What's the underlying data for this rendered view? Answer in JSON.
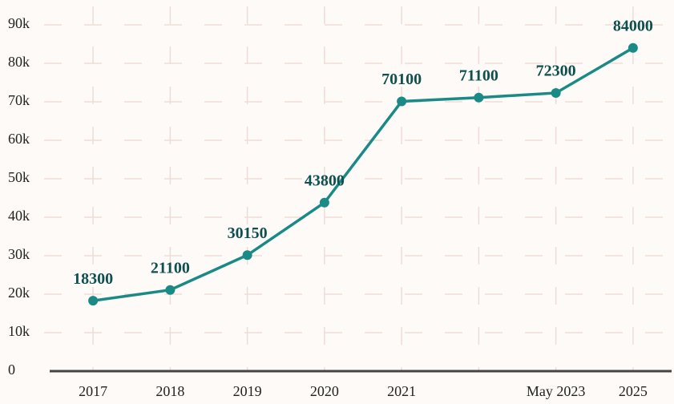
{
  "chart_data": {
    "type": "line",
    "categories": [
      "2017",
      "2018",
      "2019",
      "2020",
      "2021",
      null,
      "May 2023",
      "2025"
    ],
    "series": [
      {
        "color": "#1a8a86",
        "values": [
          18300,
          21100,
          30150,
          43800,
          70100,
          71100,
          72300,
          84000
        ]
      }
    ],
    "ylim": [
      0,
      90000
    ],
    "yticks": [
      0,
      {
        "value": 10000,
        "label": "10k"
      },
      {
        "value": 20000,
        "label": "20k"
      },
      {
        "value": 30000,
        "label": "30k"
      },
      {
        "value": 40000,
        "label": "40k"
      },
      {
        "value": 50000,
        "label": "50k"
      },
      {
        "value": 60000,
        "label": "60k"
      },
      {
        "value": 70000,
        "label": "70k"
      },
      {
        "value": 80000,
        "label": "80k"
      },
      {
        "value": 90000,
        "label": "90k"
      }
    ],
    "grid": true,
    "data_labels": true
  }
}
